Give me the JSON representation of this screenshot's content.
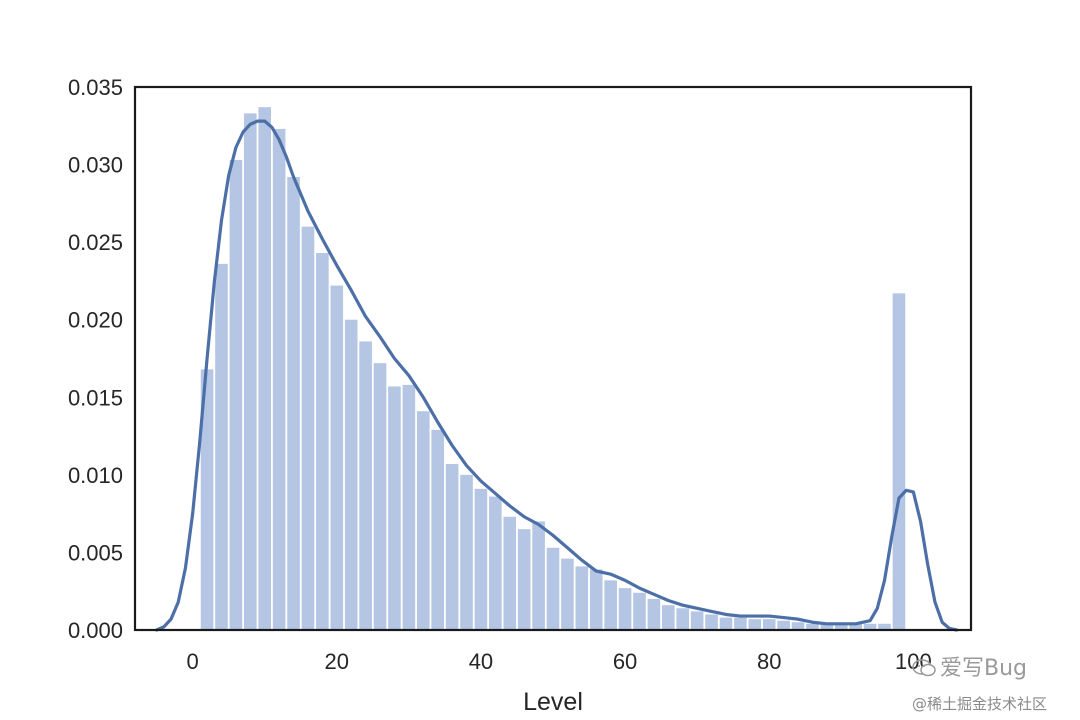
{
  "chart_data": {
    "type": "bar",
    "subtype": "histogram-with-kde",
    "title": "",
    "xlabel": "Level",
    "ylabel": "",
    "xlim": [
      -8,
      108
    ],
    "ylim": [
      0,
      0.035
    ],
    "xticks": [
      0,
      20,
      40,
      60,
      80,
      100
    ],
    "yticks": [
      "0.000",
      "0.005",
      "0.010",
      "0.015",
      "0.020",
      "0.025",
      "0.030",
      "0.035"
    ],
    "grid": false,
    "colors": {
      "bars": "#b4c6e3",
      "kde": "#4c6fa8",
      "frame": "#1a1a1a"
    },
    "bins": [
      {
        "x": 2.0,
        "y": 0.0168
      },
      {
        "x": 4.0,
        "y": 0.0236
      },
      {
        "x": 6.0,
        "y": 0.0303
      },
      {
        "x": 8.0,
        "y": 0.0333
      },
      {
        "x": 10.0,
        "y": 0.0337
      },
      {
        "x": 12.0,
        "y": 0.0323
      },
      {
        "x": 14.0,
        "y": 0.0292
      },
      {
        "x": 16.0,
        "y": 0.026
      },
      {
        "x": 18.0,
        "y": 0.0243
      },
      {
        "x": 20.0,
        "y": 0.0222
      },
      {
        "x": 22.0,
        "y": 0.02
      },
      {
        "x": 24.0,
        "y": 0.0186
      },
      {
        "x": 26.0,
        "y": 0.0172
      },
      {
        "x": 28.0,
        "y": 0.0157
      },
      {
        "x": 30.0,
        "y": 0.0158
      },
      {
        "x": 32.0,
        "y": 0.0141
      },
      {
        "x": 34.0,
        "y": 0.0129
      },
      {
        "x": 36.0,
        "y": 0.0107
      },
      {
        "x": 38.0,
        "y": 0.01
      },
      {
        "x": 40.0,
        "y": 0.0091
      },
      {
        "x": 42.0,
        "y": 0.0086
      },
      {
        "x": 44.0,
        "y": 0.0073
      },
      {
        "x": 46.0,
        "y": 0.0065
      },
      {
        "x": 48.0,
        "y": 0.007
      },
      {
        "x": 50.0,
        "y": 0.0053
      },
      {
        "x": 52.0,
        "y": 0.0046
      },
      {
        "x": 54.0,
        "y": 0.0041
      },
      {
        "x": 56.0,
        "y": 0.0039
      },
      {
        "x": 58.0,
        "y": 0.0032
      },
      {
        "x": 60.0,
        "y": 0.0027
      },
      {
        "x": 62.0,
        "y": 0.0024
      },
      {
        "x": 64.0,
        "y": 0.002
      },
      {
        "x": 66.0,
        "y": 0.0016
      },
      {
        "x": 68.0,
        "y": 0.0014
      },
      {
        "x": 70.0,
        "y": 0.0012
      },
      {
        "x": 72.0,
        "y": 0.001
      },
      {
        "x": 74.0,
        "y": 0.0008
      },
      {
        "x": 76.0,
        "y": 0.0008
      },
      {
        "x": 78.0,
        "y": 0.0007
      },
      {
        "x": 80.0,
        "y": 0.0007
      },
      {
        "x": 82.0,
        "y": 0.0006
      },
      {
        "x": 84.0,
        "y": 0.0005
      },
      {
        "x": 86.0,
        "y": 0.0004
      },
      {
        "x": 88.0,
        "y": 0.0004
      },
      {
        "x": 90.0,
        "y": 0.0004
      },
      {
        "x": 92.0,
        "y": 0.0004
      },
      {
        "x": 94.0,
        "y": 0.0004
      },
      {
        "x": 96.0,
        "y": 0.0004
      },
      {
        "x": 98.0,
        "y": 0.0217
      }
    ],
    "bin_width": 1.75,
    "kde": {
      "x": [
        -5,
        -4,
        -3,
        -2,
        -1,
        0,
        1,
        2,
        3,
        4,
        5,
        6,
        7,
        8,
        9,
        10,
        11,
        12,
        13,
        14,
        15,
        16,
        18,
        20,
        22,
        24,
        26,
        28,
        30,
        32,
        34,
        36,
        38,
        40,
        42,
        44,
        46,
        48,
        50,
        52,
        54,
        56,
        58,
        60,
        62,
        64,
        66,
        68,
        70,
        72,
        74,
        76,
        78,
        80,
        82,
        84,
        86,
        88,
        90,
        92,
        94,
        95,
        96,
        97,
        98,
        99,
        100,
        101,
        102,
        103,
        104,
        105,
        106
      ],
      "y": [
        0.0,
        0.0002,
        0.0007,
        0.0018,
        0.004,
        0.0075,
        0.0122,
        0.0175,
        0.0224,
        0.0264,
        0.0293,
        0.0311,
        0.0321,
        0.0326,
        0.0328,
        0.0328,
        0.0324,
        0.0316,
        0.0305,
        0.0292,
        0.0281,
        0.027,
        0.0252,
        0.0235,
        0.0219,
        0.0202,
        0.0189,
        0.0175,
        0.0164,
        0.015,
        0.0134,
        0.0119,
        0.0106,
        0.0096,
        0.0088,
        0.008,
        0.0073,
        0.0068,
        0.0061,
        0.0053,
        0.0045,
        0.0038,
        0.0036,
        0.0032,
        0.0027,
        0.0023,
        0.0019,
        0.0016,
        0.0014,
        0.0012,
        0.001,
        0.0009,
        0.0009,
        0.0009,
        0.0008,
        0.0007,
        0.0005,
        0.0004,
        0.0004,
        0.0004,
        0.0006,
        0.0014,
        0.0032,
        0.006,
        0.0085,
        0.009,
        0.0089,
        0.007,
        0.0042,
        0.0018,
        0.0005,
        0.0001,
        0.0
      ]
    }
  },
  "watermark": {
    "line1": "爱写Bug",
    "line2": "@稀土掘金技术社区"
  }
}
